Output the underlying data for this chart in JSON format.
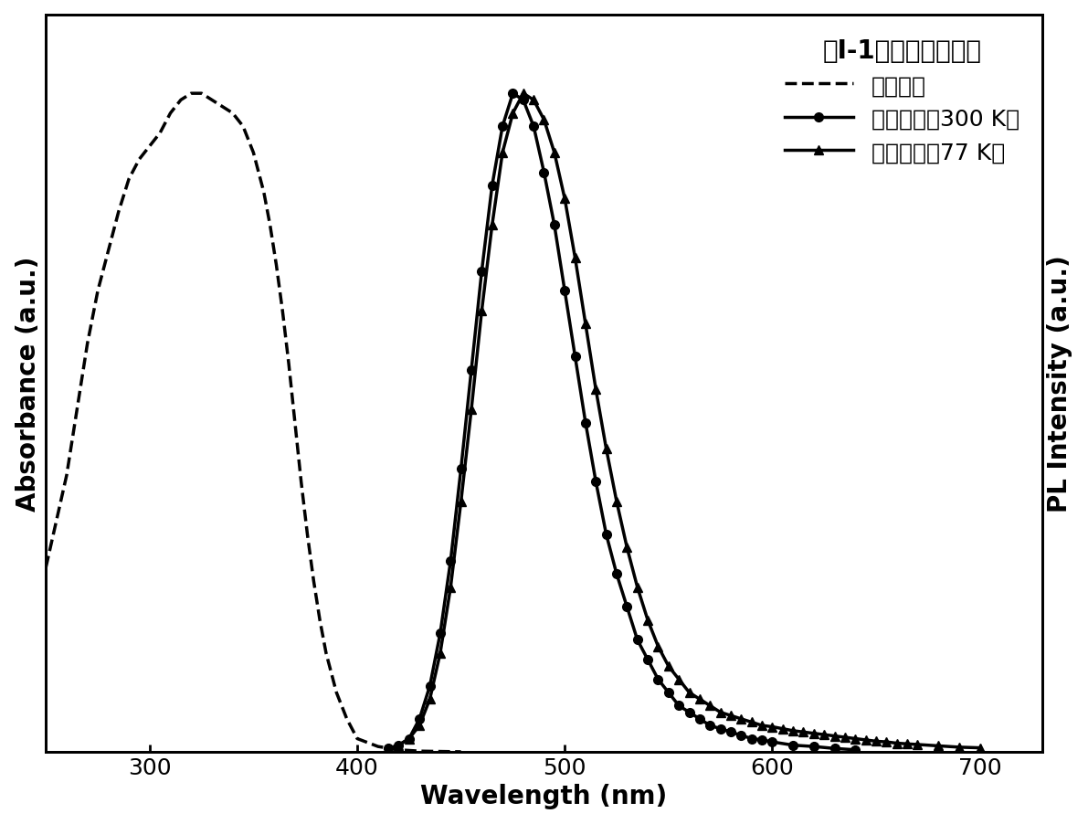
{
  "title": "式I-1所示结构化合物",
  "xlabel": "Wavelength (nm)",
  "ylabel_left": "Absorbance (a.u.)",
  "ylabel_right": "PL Intensity (a.u.)",
  "xlim": [
    250,
    730
  ],
  "xticks": [
    300,
    400,
    500,
    600,
    700
  ],
  "legend_title": "式I-1所示结构化合物",
  "legend_entries": [
    "吸收光谱",
    "发射光谱（300 K）",
    "发射光谱（77 K）"
  ],
  "absorbance": {
    "x": [
      250,
      260,
      265,
      270,
      275,
      280,
      285,
      290,
      295,
      300,
      305,
      310,
      315,
      320,
      325,
      330,
      335,
      340,
      345,
      350,
      355,
      358,
      361,
      364,
      367,
      370,
      373,
      376,
      379,
      382,
      385,
      390,
      395,
      400,
      410,
      420,
      430,
      450
    ],
    "y": [
      0.28,
      0.42,
      0.52,
      0.62,
      0.7,
      0.76,
      0.82,
      0.87,
      0.9,
      0.92,
      0.94,
      0.97,
      0.99,
      1.0,
      1.0,
      0.99,
      0.98,
      0.97,
      0.95,
      0.91,
      0.85,
      0.8,
      0.74,
      0.67,
      0.59,
      0.5,
      0.41,
      0.33,
      0.26,
      0.2,
      0.15,
      0.09,
      0.05,
      0.02,
      0.008,
      0.003,
      0.001,
      0.0
    ]
  },
  "emission_300K": {
    "x": [
      415,
      420,
      425,
      430,
      435,
      440,
      445,
      450,
      455,
      460,
      465,
      470,
      475,
      480,
      485,
      490,
      495,
      500,
      505,
      510,
      515,
      520,
      525,
      530,
      535,
      540,
      545,
      550,
      555,
      560,
      565,
      570,
      575,
      580,
      585,
      590,
      595,
      600,
      610,
      620,
      630,
      640
    ],
    "y": [
      0.005,
      0.01,
      0.02,
      0.05,
      0.1,
      0.18,
      0.29,
      0.43,
      0.58,
      0.73,
      0.86,
      0.95,
      1.0,
      0.99,
      0.95,
      0.88,
      0.8,
      0.7,
      0.6,
      0.5,
      0.41,
      0.33,
      0.27,
      0.22,
      0.17,
      0.14,
      0.11,
      0.09,
      0.07,
      0.06,
      0.05,
      0.04,
      0.035,
      0.03,
      0.025,
      0.02,
      0.018,
      0.015,
      0.01,
      0.008,
      0.005,
      0.003
    ]
  },
  "emission_77K": {
    "x": [
      415,
      420,
      425,
      430,
      435,
      440,
      445,
      450,
      455,
      460,
      465,
      470,
      475,
      480,
      485,
      490,
      495,
      500,
      505,
      510,
      515,
      520,
      525,
      530,
      535,
      540,
      545,
      550,
      555,
      560,
      565,
      570,
      575,
      580,
      585,
      590,
      595,
      600,
      605,
      610,
      615,
      620,
      625,
      630,
      635,
      640,
      645,
      650,
      655,
      660,
      665,
      670,
      680,
      690,
      700
    ],
    "y": [
      0.005,
      0.01,
      0.02,
      0.04,
      0.08,
      0.15,
      0.25,
      0.38,
      0.52,
      0.67,
      0.8,
      0.91,
      0.97,
      1.0,
      0.99,
      0.96,
      0.91,
      0.84,
      0.75,
      0.65,
      0.55,
      0.46,
      0.38,
      0.31,
      0.25,
      0.2,
      0.16,
      0.13,
      0.11,
      0.09,
      0.08,
      0.07,
      0.06,
      0.055,
      0.05,
      0.045,
      0.04,
      0.038,
      0.035,
      0.032,
      0.03,
      0.028,
      0.026,
      0.024,
      0.022,
      0.02,
      0.018,
      0.016,
      0.015,
      0.013,
      0.012,
      0.011,
      0.009,
      0.007,
      0.006
    ]
  },
  "line_color": "#000000",
  "background_color": "#ffffff",
  "fontsize_labels": 20,
  "fontsize_legend_title": 20,
  "fontsize_legend": 18,
  "fontsize_ticks": 18,
  "linewidth": 2.5,
  "markersize": 7
}
